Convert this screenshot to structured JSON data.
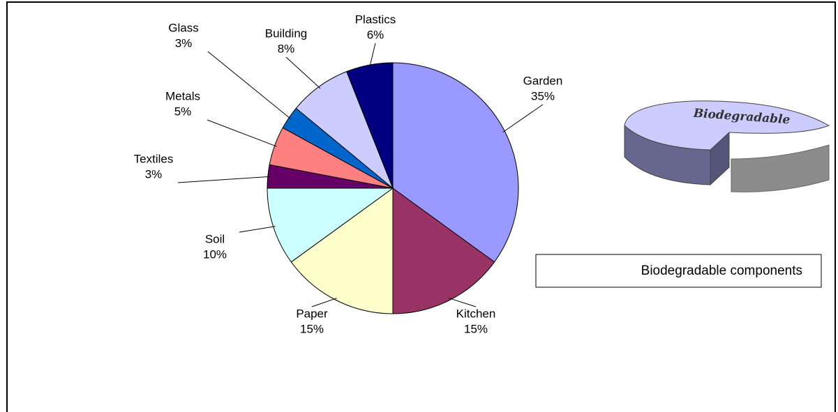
{
  "chart_data": {
    "type": "pie",
    "categories": [
      "Garden",
      "Kitchen",
      "Paper",
      "Soil",
      "Textiles",
      "Metals",
      "Glass",
      "Building",
      "Plastics"
    ],
    "values": [
      35,
      15,
      15,
      10,
      3,
      5,
      3,
      8,
      6
    ],
    "value_labels": [
      "35%",
      "15%",
      "15%",
      "10%",
      "3%",
      "5%",
      "3%",
      "8%",
      "6%"
    ],
    "colors": [
      "#9999ff",
      "#993366",
      "#ffffcc",
      "#ccffff",
      "#660066",
      "#ff8080",
      "#0066cc",
      "#ccccff",
      "#000080"
    ],
    "legend_text": "Biodegradable components",
    "graphic_label": "Biodegradable"
  }
}
